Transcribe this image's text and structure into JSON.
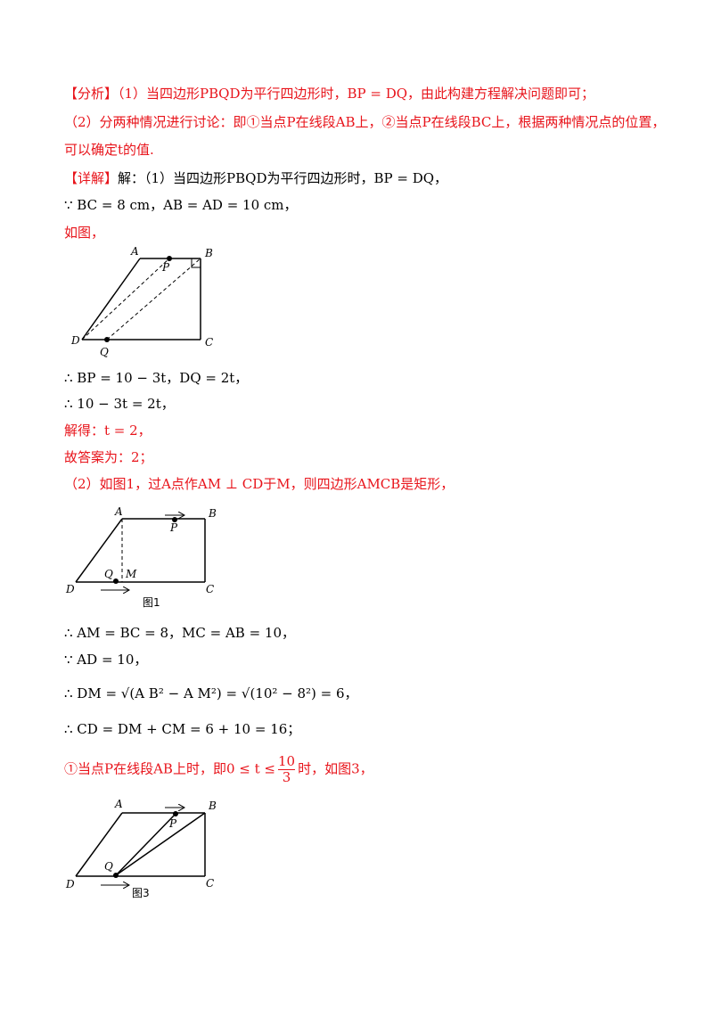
{
  "paragraphs": [
    [
      "【分析】",
      "（1）当四边形PBQD为平行四边形时，BP = DQ，由此构建方程解决问题即可；"
    ],
    [
      "（2）分两种情况进行讨论：即①当点P在线段AB上，②当点P在线段BC上，根据两种情况点的位置，"
    ],
    [
      "可以确定t的值."
    ],
    [
      "【详解】",
      "解：（1）当四边形PBQD为平行四边形时，BP = DQ，"
    ],
    [
      "∵ BC = 8 cm，AB = AD = 10 cm，"
    ],
    [
      "如图，"
    ],
    [
      "∴ BP = 10 − 3t，DQ = 2t，"
    ],
    [
      "∴ 10 − 3t = 2t，"
    ],
    [
      "解得：t = 2，"
    ],
    [
      "故答案为：2；"
    ],
    [
      "（2）如图1，过A点作AM ⊥ CD于M，则四边形AMCB是矩形，"
    ],
    [
      "∴ AM = BC = 8，MC = AB = 10，"
    ],
    [
      "∵ AD = 10，"
    ],
    [
      "∴ DM = √(A B² − A M²) = √(10² − 8²) = 6，"
    ],
    [
      "∴ CD = DM + CM = 6 + 10 = 16；"
    ],
    [
      "①当点P在线段AB上时，即0 ≤ t ≤",
      "10",
      "3",
      "时，如图3，"
    ]
  ],
  "figures": [
    {
      "labels": [
        "A",
        "B",
        "C",
        "D",
        "P",
        "Q"
      ]
    },
    {
      "labels": [
        "A",
        "B",
        "C",
        "D",
        "P",
        "Q",
        "M"
      ],
      "caption": "图1"
    },
    {
      "labels": [
        "A",
        "B",
        "C",
        "D",
        "P",
        "Q"
      ],
      "caption": "图3"
    }
  ]
}
